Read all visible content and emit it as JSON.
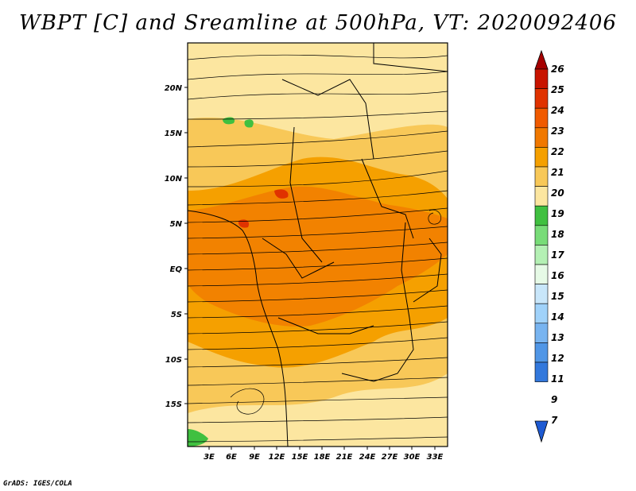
{
  "title": "WBPT [C] and Sreamline at 500hPa, VT: 2020092406",
  "credit": "GrADS: IGES/COLA",
  "map": {
    "lat_ticks": [
      "20N",
      "15N",
      "10N",
      "5N",
      "EQ",
      "5S",
      "10S",
      "15S"
    ],
    "lon_ticks": [
      "3E",
      "6E",
      "9E",
      "12E",
      "15E",
      "18E",
      "21E",
      "24E",
      "27E",
      "30E",
      "33E"
    ]
  },
  "colorbar": {
    "labels": [
      "26",
      "25",
      "24",
      "23",
      "22",
      "21",
      "20",
      "19",
      "18",
      "17",
      "16",
      "15",
      "14",
      "13",
      "12",
      "11",
      "9",
      "7"
    ],
    "colors": [
      "#a50000",
      "#c81400",
      "#e03200",
      "#f05a00",
      "#f07800",
      "#f5a000",
      "#f8c858",
      "#fce6a0",
      "#40c040",
      "#78dc78",
      "#b4f0b4",
      "#e6fae6",
      "#c8e6fa",
      "#a0d2fa",
      "#78b4f0",
      "#5096e6",
      "#3278dc",
      "#1e5ad2"
    ]
  }
}
